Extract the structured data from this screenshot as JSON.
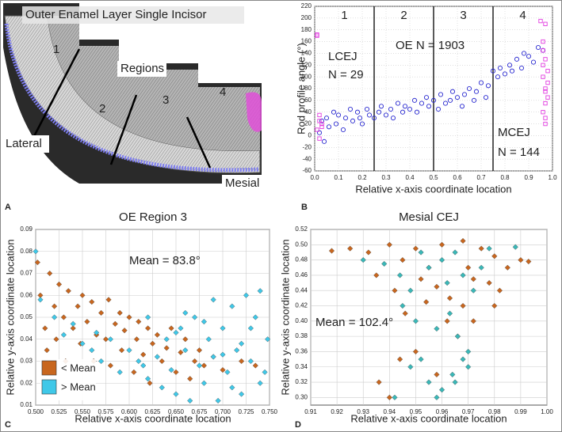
{
  "panel_a": {
    "label": "A",
    "title": "Outer Enamel Layer Single Incisor",
    "regions": [
      "1",
      "2",
      "3",
      "4"
    ],
    "regions_label": "Regions",
    "lateral": "Lateral",
    "mesial": "Mesial"
  },
  "chart_data": [
    {
      "type": "scatter",
      "panel": "B",
      "xlabel": "Relative x-axis coordinate location",
      "ylabel": "Rod profile angle (°)",
      "xlim": [
        0,
        1
      ],
      "xticks": [
        {
          "value": 0,
          "label": "0.0"
        },
        0.1,
        0.2,
        0.3,
        0.4,
        0.5,
        0.6,
        0.7,
        0.8,
        0.9,
        {
          "value": 1,
          "label": "1.0"
        }
      ],
      "ylim": [
        -60,
        220
      ],
      "yticks": [
        -60,
        -40,
        -20,
        0,
        20,
        40,
        60,
        80,
        100,
        120,
        140,
        160,
        180,
        200,
        220
      ],
      "grid": true,
      "dividers": [
        0.25,
        0.5,
        0.75
      ],
      "region_labels": [
        "1",
        "2",
        "3",
        "4"
      ],
      "annotations": [
        "LCEJ",
        "N = 29",
        "OE N = 1903",
        "MCEJ",
        "N = 144"
      ],
      "series": [
        {
          "color": "#2a2ad0",
          "marker": "circle",
          "x": [
            0.02,
            0.03,
            0.04,
            0.05,
            0.06,
            0.08,
            0.09,
            0.1,
            0.12,
            0.13,
            0.15,
            0.16,
            0.18,
            0.19,
            0.2,
            0.22,
            0.23,
            0.25,
            0.27,
            0.28,
            0.3,
            0.32,
            0.33,
            0.35,
            0.37,
            0.38,
            0.4,
            0.42,
            0.43,
            0.45,
            0.47,
            0.48,
            0.5,
            0.52,
            0.53,
            0.55,
            0.57,
            0.58,
            0.6,
            0.62,
            0.63,
            0.65,
            0.67,
            0.68,
            0.7,
            0.72,
            0.73,
            0.75,
            0.77,
            0.78,
            0.8,
            0.82,
            0.83,
            0.85,
            0.87,
            0.88,
            0.9,
            0.92,
            0.94,
            0.96
          ],
          "values": [
            5,
            25,
            -10,
            30,
            15,
            40,
            20,
            35,
            10,
            30,
            45,
            25,
            40,
            30,
            20,
            45,
            35,
            30,
            40,
            50,
            35,
            45,
            30,
            55,
            40,
            50,
            45,
            60,
            40,
            55,
            65,
            50,
            60,
            45,
            70,
            55,
            60,
            75,
            65,
            50,
            70,
            80,
            60,
            75,
            90,
            65,
            85,
            110,
            100,
            115,
            105,
            120,
            110,
            130,
            115,
            140,
            135,
            125,
            150,
            145
          ]
        },
        {
          "color": "#e23ce0",
          "marker": "square",
          "x": [
            0.01,
            0.01,
            0.02,
            0.02,
            0.02,
            0.03,
            0.01,
            0.03,
            0.95,
            0.96,
            0.96,
            0.97,
            0.97,
            0.97,
            0.98,
            0.96,
            0.97,
            0.98,
            0.97,
            0.96,
            0.98,
            0.97,
            0.97,
            0.96
          ],
          "values": [
            170,
            10,
            25,
            -5,
            35,
            15,
            172,
            20,
            195,
            160,
            100,
            80,
            55,
            130,
            65,
            40,
            20,
            110,
            190,
            145,
            90,
            75,
            30,
            120
          ]
        }
      ]
    },
    {
      "type": "scatter",
      "panel": "C",
      "title": "OE Region 3",
      "xlabel": "Relative x-axis coordinate location",
      "ylabel": "Relative y-axis coordinate location",
      "xlim": [
        0.5,
        0.75
      ],
      "xticks": [
        {
          "value": 0.5,
          "label": "0.500"
        },
        {
          "value": 0.525,
          "label": "0.525"
        },
        {
          "value": 0.55,
          "label": "0.550"
        },
        {
          "value": 0.575,
          "label": "0.575"
        },
        {
          "value": 0.6,
          "label": "0.600"
        },
        {
          "value": 0.625,
          "label": "0.625"
        },
        {
          "value": 0.65,
          "label": "0.650"
        },
        {
          "value": 0.675,
          "label": "0.675"
        },
        {
          "value": 0.7,
          "label": "0.700"
        },
        {
          "value": 0.725,
          "label": "0.725"
        },
        {
          "value": 0.75,
          "label": "0.750"
        }
      ],
      "ylim": [
        0.01,
        0.09
      ],
      "yticks": [
        0.01,
        0.02,
        0.03,
        0.04,
        0.05,
        0.06,
        0.07,
        0.08,
        0.09
      ],
      "grid": true,
      "legend": "lower left",
      "annotations": [
        "Mean = 83.8°"
      ],
      "series": [
        {
          "name": "< Mean",
          "color": "#c8661e",
          "marker": "diamond",
          "x": [
            0.502,
            0.505,
            0.51,
            0.512,
            0.515,
            0.52,
            0.522,
            0.525,
            0.53,
            0.532,
            0.535,
            0.54,
            0.545,
            0.548,
            0.55,
            0.555,
            0.56,
            0.562,
            0.565,
            0.57,
            0.575,
            0.578,
            0.58,
            0.585,
            0.59,
            0.592,
            0.595,
            0.6,
            0.605,
            0.608,
            0.61,
            0.615,
            0.62,
            0.622,
            0.625,
            0.63,
            0.635,
            0.64,
            0.645,
            0.65,
            0.655,
            0.66,
            0.665,
            0.67,
            0.675,
            0.68,
            0.69,
            0.7,
            0.72,
            0.735
          ],
          "values": [
            0.075,
            0.06,
            0.045,
            0.035,
            0.07,
            0.055,
            0.04,
            0.065,
            0.05,
            0.03,
            0.062,
            0.045,
            0.055,
            0.038,
            0.06,
            0.048,
            0.057,
            0.03,
            0.042,
            0.052,
            0.04,
            0.058,
            0.028,
            0.047,
            0.052,
            0.035,
            0.044,
            0.05,
            0.025,
            0.04,
            0.048,
            0.033,
            0.045,
            0.02,
            0.038,
            0.042,
            0.03,
            0.036,
            0.045,
            0.025,
            0.034,
            0.04,
            0.022,
            0.03,
            0.035,
            0.028,
            0.032,
            0.026,
            0.03,
            0.028
          ]
        },
        {
          "name": "> Mean",
          "color": "#3fc8e8",
          "marker": "diamond",
          "x": [
            0.5,
            0.505,
            0.52,
            0.53,
            0.54,
            0.55,
            0.56,
            0.565,
            0.57,
            0.58,
            0.59,
            0.6,
            0.61,
            0.615,
            0.62,
            0.63,
            0.635,
            0.64,
            0.645,
            0.65,
            0.655,
            0.66,
            0.665,
            0.67,
            0.675,
            0.68,
            0.685,
            0.69,
            0.695,
            0.7,
            0.705,
            0.71,
            0.715,
            0.72,
            0.725,
            0.73,
            0.735,
            0.74,
            0.745,
            0.748,
            0.62,
            0.65,
            0.68,
            0.7,
            0.72,
            0.74,
            0.66,
            0.69,
            0.71,
            0.73
          ],
          "values": [
            0.08,
            0.058,
            0.05,
            0.042,
            0.047,
            0.038,
            0.035,
            0.043,
            0.03,
            0.04,
            0.025,
            0.035,
            0.03,
            0.028,
            0.022,
            0.032,
            0.018,
            0.04,
            0.026,
            0.015,
            0.045,
            0.035,
            0.012,
            0.05,
            0.028,
            0.02,
            0.04,
            0.032,
            0.012,
            0.045,
            0.025,
            0.055,
            0.035,
            0.015,
            0.06,
            0.045,
            0.05,
            0.062,
            0.025,
            0.04,
            0.05,
            0.043,
            0.048,
            0.033,
            0.038,
            0.02,
            0.052,
            0.058,
            0.018,
            0.03
          ]
        }
      ]
    },
    {
      "type": "scatter",
      "panel": "D",
      "title": "Mesial CEJ",
      "xlabel": "Relative x-axis coordinate location",
      "ylabel": "Relative y-axis coordinate location",
      "xlim": [
        0.91,
        1
      ],
      "xticks": [
        0.91,
        0.92,
        0.93,
        0.94,
        0.95,
        0.96,
        0.97,
        0.98,
        0.99,
        {
          "value": 1,
          "label": "1.00"
        }
      ],
      "ylim": [
        0.29,
        0.52
      ],
      "yticks": [
        {
          "value": 0.3,
          "label": "0.30"
        },
        0.32,
        0.34,
        0.36,
        0.38,
        {
          "value": 0.4,
          "label": "0.40"
        },
        0.42,
        0.44,
        0.46,
        0.48,
        {
          "value": 0.5,
          "label": "0.50"
        },
        0.52
      ],
      "grid": true,
      "annotations": [
        "Mean = 102.4°"
      ],
      "series": [
        {
          "color": "#c8661e",
          "marker": "diamond",
          "x": [
            0.918,
            0.925,
            0.932,
            0.94,
            0.945,
            0.95,
            0.955,
            0.96,
            0.968,
            0.975,
            0.98,
            0.985,
            0.99,
            0.993,
            0.935,
            0.942,
            0.952,
            0.958,
            0.963,
            0.97,
            0.978,
            0.982,
            0.946,
            0.954,
            0.962,
            0.968,
            0.972,
            0.98,
            0.936,
            0.944,
            0.95,
            0.958,
            0.966,
            0.972,
            0.94
          ],
          "values": [
            0.492,
            0.495,
            0.49,
            0.5,
            0.48,
            0.495,
            0.47,
            0.5,
            0.505,
            0.495,
            0.485,
            0.47,
            0.48,
            0.478,
            0.46,
            0.44,
            0.455,
            0.445,
            0.43,
            0.47,
            0.45,
            0.44,
            0.41,
            0.425,
            0.4,
            0.42,
            0.455,
            0.42,
            0.32,
            0.35,
            0.36,
            0.33,
            0.38,
            0.4,
            0.3
          ]
        },
        {
          "color": "#3ab8b8",
          "marker": "diamond",
          "x": [
            0.93,
            0.938,
            0.944,
            0.948,
            0.952,
            0.955,
            0.96,
            0.962,
            0.965,
            0.968,
            0.972,
            0.975,
            0.978,
            0.988,
            0.945,
            0.95,
            0.958,
            0.963,
            0.966,
            0.97,
            0.948,
            0.955,
            0.96,
            0.964,
            0.968,
            0.942,
            0.952,
            0.958,
            0.965,
            0.97
          ],
          "values": [
            0.48,
            0.475,
            0.46,
            0.44,
            0.49,
            0.47,
            0.48,
            0.45,
            0.49,
            0.46,
            0.44,
            0.47,
            0.495,
            0.497,
            0.42,
            0.4,
            0.39,
            0.41,
            0.38,
            0.36,
            0.34,
            0.32,
            0.31,
            0.33,
            0.35,
            0.3,
            0.35,
            0.3,
            0.32,
            0.34
          ]
        }
      ]
    }
  ]
}
